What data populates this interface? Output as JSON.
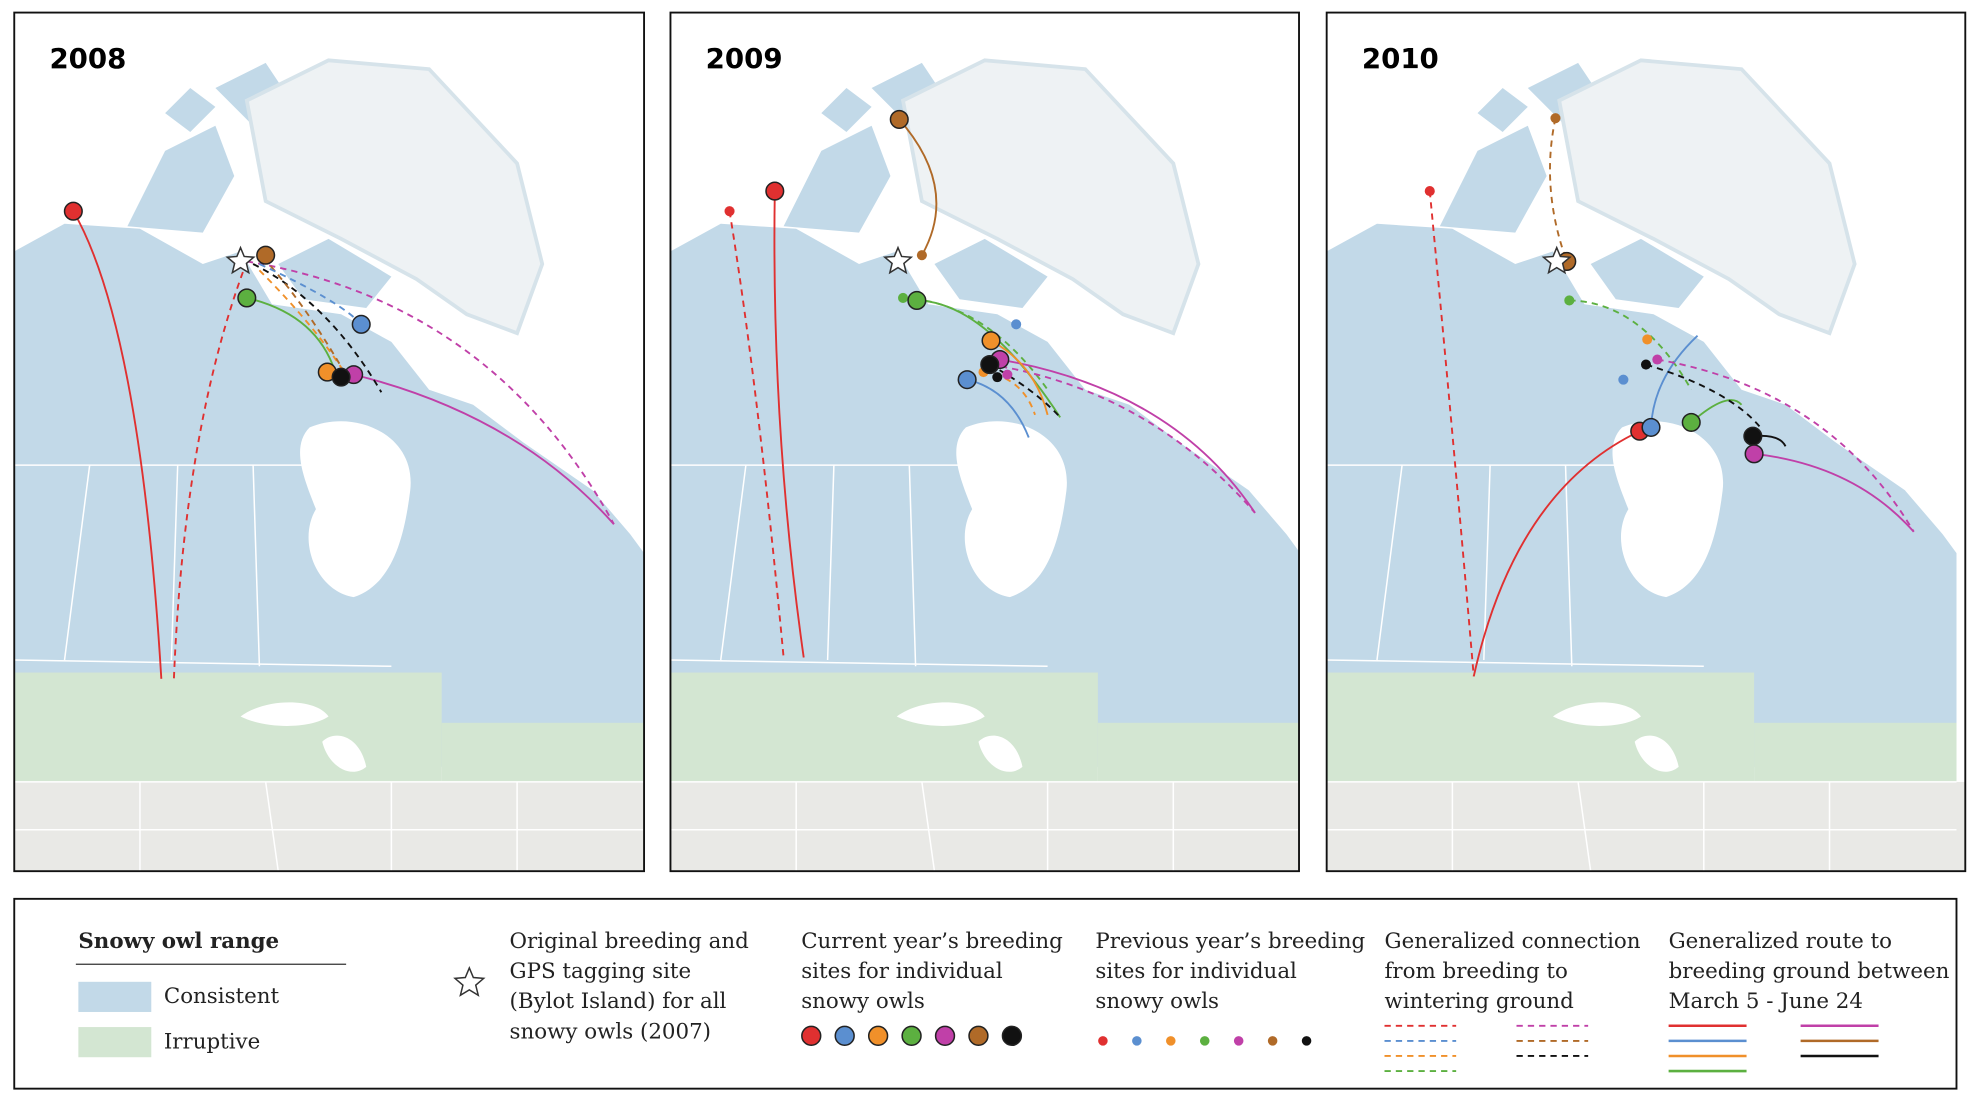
{
  "panels": [
    {
      "year": "2008"
    },
    {
      "year": "2009"
    },
    {
      "year": "2010"
    }
  ],
  "legend": {
    "range_title": "Snowy owl range",
    "range_items": [
      "Consistent",
      "Irruptive"
    ],
    "tagging_site": [
      "Original breeding and",
      "GPS tagging site",
      "(Bylot Island) for all",
      "snowy owls (2007)"
    ],
    "current_sites": [
      "Current year’s breeding",
      "sites for individual",
      "snowy owls"
    ],
    "previous_sites": [
      "Previous year’s breeding",
      "sites for individual",
      "snowy owls"
    ],
    "connection": [
      "Generalized connection",
      "from breeding to",
      "wintering ground"
    ],
    "route": [
      "Generalized route to",
      "breeding ground between",
      "March 5 - June 24"
    ]
  }
}
